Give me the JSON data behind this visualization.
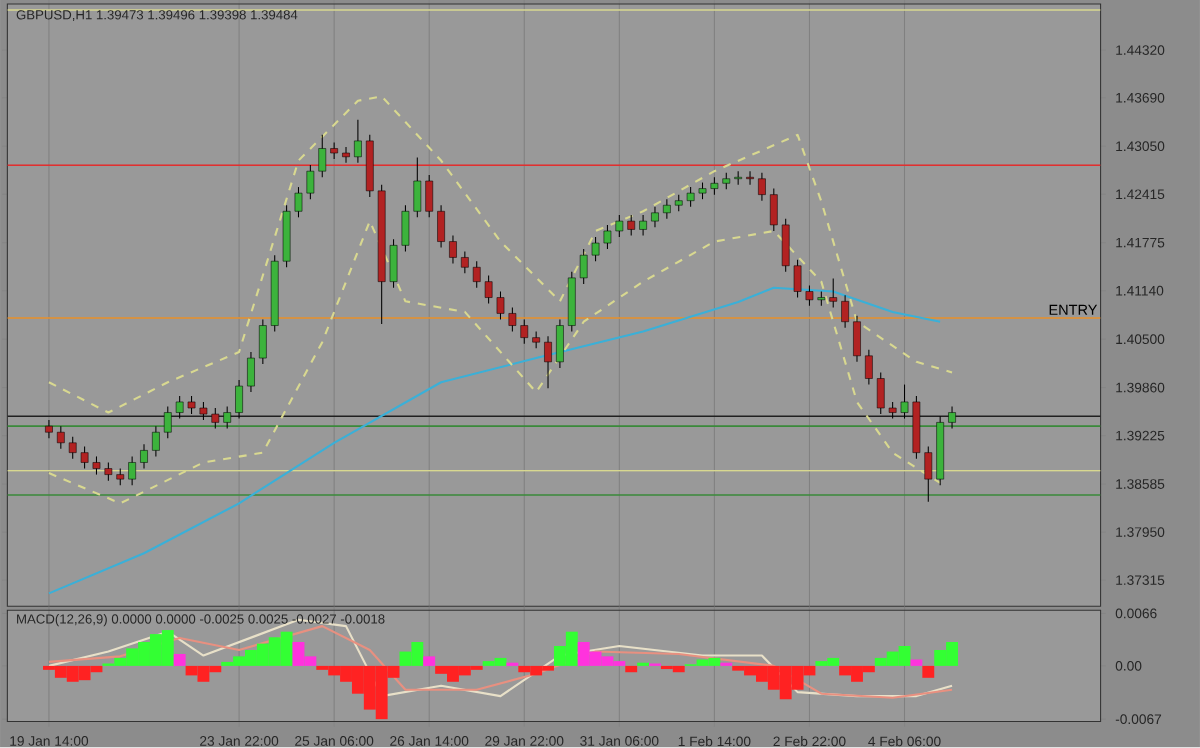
{
  "chart_data": [
    {
      "type": "candlestick",
      "title": "GBPUSD,H1 1.39473 1.39496 1.39398 1.39484",
      "categories": [
        null,
        null,
        null,
        null,
        null,
        null,
        null,
        null,
        null,
        null,
        null,
        null,
        null,
        null,
        null,
        null,
        null,
        null,
        null,
        null,
        null,
        null,
        null,
        null,
        null,
        null,
        null,
        null,
        null,
        null,
        null,
        null,
        null,
        null,
        null,
        null,
        null,
        null,
        null,
        null,
        null,
        null,
        null,
        null,
        null,
        null,
        null,
        null,
        null,
        null,
        null,
        null,
        null,
        null,
        null,
        null,
        null,
        null,
        null,
        null,
        null,
        null,
        null,
        null,
        null,
        null,
        null,
        null,
        null,
        null,
        null,
        null,
        null,
        null,
        null,
        null,
        null,
        null,
        null,
        null,
        null,
        null,
        null,
        null,
        null,
        null,
        null,
        null,
        null,
        null,
        null,
        null
      ],
      "ohlc": [
        null,
        null,
        null,
        [
          1.3935,
          1.3943,
          1.3919,
          1.3927
        ],
        [
          1.3927,
          1.3935,
          1.3905,
          1.3913
        ],
        [
          1.3913,
          1.3921,
          1.3892,
          1.39
        ],
        [
          1.39,
          1.3908,
          1.3879,
          1.3887
        ],
        [
          1.3887,
          1.3895,
          1.3871,
          1.3879
        ],
        [
          1.3879,
          1.3887,
          1.3863,
          1.3871
        ],
        [
          1.3871,
          1.3879,
          1.3857,
          1.3865
        ],
        [
          1.3865,
          1.3895,
          1.3857,
          1.3887
        ],
        [
          1.3887,
          1.3911,
          1.3879,
          1.3903
        ],
        [
          1.3903,
          1.3935,
          1.3895,
          1.3927
        ],
        [
          1.3927,
          1.3961,
          1.3919,
          1.3953
        ],
        [
          1.3953,
          1.3975,
          1.3945,
          1.3967
        ],
        [
          1.3967,
          1.3975,
          1.3951,
          1.3959
        ],
        [
          1.3959,
          1.3967,
          1.3943,
          1.3951
        ],
        [
          1.3951,
          1.3959,
          1.3932,
          1.394
        ],
        [
          1.394,
          1.3961,
          1.3932,
          1.3953
        ],
        [
          1.3953,
          1.3996,
          1.3945,
          1.3988
        ],
        [
          1.3988,
          1.4033,
          1.398,
          1.4025
        ],
        [
          1.4025,
          1.4076,
          1.4017,
          1.4068
        ],
        [
          1.4068,
          1.4161,
          1.406,
          1.4153
        ],
        [
          1.4153,
          1.4227,
          1.4145,
          1.4219
        ],
        [
          1.4219,
          1.4251,
          1.4211,
          1.4243
        ],
        [
          1.4243,
          1.428,
          1.4235,
          1.4272
        ],
        [
          1.4272,
          1.432,
          1.4264,
          1.4302
        ],
        [
          1.4302,
          1.431,
          1.4288,
          1.4296
        ],
        [
          1.4296,
          1.4304,
          1.4283,
          1.4291
        ],
        [
          1.4291,
          1.434,
          1.4283,
          1.4312
        ],
        [
          1.4312,
          1.432,
          1.4238,
          1.4246
        ],
        [
          1.4246,
          1.4254,
          1.407,
          1.4126
        ],
        [
          1.4126,
          1.4182,
          1.4118,
          1.4174
        ],
        [
          1.4174,
          1.4227,
          1.4166,
          1.4219
        ],
        [
          1.4219,
          1.429,
          1.4211,
          1.4259
        ],
        [
          1.4259,
          1.4267,
          1.4211,
          1.4219
        ],
        [
          1.4219,
          1.4227,
          1.4171,
          1.4179
        ],
        [
          1.4179,
          1.4187,
          1.415,
          1.4158
        ],
        [
          1.4158,
          1.4166,
          1.4137,
          1.4145
        ],
        [
          1.4145,
          1.4153,
          1.4118,
          1.4126
        ],
        [
          1.4126,
          1.4134,
          1.4097,
          1.4105
        ],
        [
          1.4105,
          1.4113,
          1.4076,
          1.4084
        ],
        [
          1.4084,
          1.4092,
          1.406,
          1.4068
        ],
        [
          1.4068,
          1.4076,
          1.4044,
          1.4052
        ],
        [
          1.4052,
          1.406,
          1.4038,
          1.4046
        ],
        [
          1.4046,
          1.4054,
          1.3985,
          1.402
        ],
        [
          1.402,
          1.4076,
          1.4012,
          1.4068
        ],
        [
          1.4068,
          1.4139,
          1.406,
          1.4131
        ],
        [
          1.4131,
          1.4169,
          1.4123,
          1.4161
        ],
        [
          1.4161,
          1.4185,
          1.4153,
          1.4177
        ],
        [
          1.4177,
          1.4201,
          1.4169,
          1.4193
        ],
        [
          1.4193,
          1.4214,
          1.4185,
          1.4206
        ],
        [
          1.4206,
          1.4214,
          1.4187,
          1.4195
        ],
        [
          1.4195,
          1.4214,
          1.4187,
          1.4206
        ],
        [
          1.4206,
          1.4225,
          1.4198,
          1.4217
        ],
        [
          1.4217,
          1.4235,
          1.4209,
          1.4227
        ],
        [
          1.4227,
          1.4241,
          1.4219,
          1.4233
        ],
        [
          1.4233,
          1.4251,
          1.4225,
          1.4243
        ],
        [
          1.4243,
          1.4257,
          1.4235,
          1.4249
        ],
        [
          1.4249,
          1.4264,
          1.4241,
          1.4256
        ],
        [
          1.4256,
          1.427,
          1.4248,
          1.4262
        ],
        [
          1.4262,
          1.4272,
          1.4254,
          1.4264
        ],
        [
          1.4264,
          1.4272,
          1.4254,
          1.4262
        ],
        [
          1.4262,
          1.427,
          1.4233,
          1.4241
        ],
        [
          1.4241,
          1.4249,
          1.4193,
          1.4201
        ],
        [
          1.4201,
          1.4209,
          1.4139,
          1.4147
        ],
        [
          1.4147,
          1.4155,
          1.4105,
          1.4113
        ],
        [
          1.4113,
          1.4121,
          1.4094,
          1.4102
        ],
        [
          1.4102,
          1.4113,
          1.4094,
          1.4105
        ],
        [
          1.4105,
          1.413,
          1.4092,
          1.41
        ],
        [
          1.41,
          1.4108,
          1.4065,
          1.4073
        ],
        [
          1.4073,
          1.4081,
          1.402,
          1.4028
        ],
        [
          1.4028,
          1.4036,
          1.399,
          1.3998
        ],
        [
          1.3998,
          1.4006,
          1.3951,
          1.3959
        ],
        [
          1.3959,
          1.3967,
          1.3945,
          1.3953
        ],
        [
          1.3953,
          1.399,
          1.3945,
          1.3967
        ],
        [
          1.3967,
          1.3975,
          1.3892,
          1.39
        ],
        [
          1.39,
          1.3908,
          1.3835,
          1.3865
        ],
        [
          1.3865,
          1.3948,
          1.3857,
          1.394
        ],
        [
          1.394,
          1.3961,
          1.3932,
          1.3953
        ],
        null,
        null,
        null,
        null,
        null,
        null,
        null,
        null,
        null,
        null,
        null,
        null
      ],
      "colors": [
        null,
        null,
        null,
        "#b22222",
        "#b22222",
        "#b22222",
        "#b22222",
        "#b22222",
        "#b22222",
        "#b22222",
        "#3cb33c",
        "#3cb33c",
        "#3cb33c",
        "#3cb33c",
        "#3cb33c",
        "#b22222",
        "#b22222",
        "#b22222",
        "#3cb33c",
        "#3cb33c",
        "#3cb33c",
        "#3cb33c",
        "#3cb33c",
        "#3cb33c",
        "#3cb33c",
        "#3cb33c",
        "#3cb33c",
        "#b22222",
        "#b22222",
        "#3cb33c",
        "#b22222",
        "#b22222",
        "#3cb33c",
        "#3cb33c",
        "#3cb33c",
        "#b22222",
        "#b22222",
        "#b22222",
        "#b22222",
        "#b22222",
        "#b22222",
        "#b22222",
        "#b22222",
        "#b22222",
        "#b22222",
        "#b22222",
        "#3cb33c",
        "#3cb33c",
        "#3cb33c",
        "#3cb33c",
        "#3cb33c",
        "#3cb33c",
        "#b22222",
        "#3cb33c",
        "#3cb33c",
        "#3cb33c",
        "#3cb33c",
        "#3cb33c",
        "#3cb33c",
        "#3cb33c",
        "#3cb33c",
        "#3cb33c",
        "#b22222",
        "#b22222",
        "#b22222",
        "#b22222",
        "#b22222",
        "#b22222",
        "#3cb33c",
        "#b22222",
        "#b22222",
        "#b22222",
        "#b22222",
        "#b22222",
        "#b22222",
        "#3cb33c",
        "#b22222",
        "#b22222",
        "#3cb33c",
        "#3cb33c",
        null,
        null,
        null,
        null,
        null,
        null,
        null,
        null,
        null,
        null,
        null,
        null
      ],
      "series": [
        {
          "type": "line",
          "color": "#3ab0d8",
          "line_style": "solid",
          "values": [
            null,
            null,
            null,
            1.3714,
            null,
            null,
            null,
            null,
            null,
            null,
            null,
            1.3767,
            null,
            null,
            null,
            null,
            null,
            null,
            null,
            1.3833,
            null,
            null,
            null,
            null,
            null,
            null,
            null,
            1.3913,
            null,
            null,
            null,
            null,
            null,
            null,
            null,
            null,
            1.3993,
            null,
            null,
            null,
            null,
            null,
            null,
            null,
            1.4025,
            null,
            null,
            null,
            null,
            null,
            null,
            null,
            null,
            1.406,
            null,
            null,
            null,
            null,
            null,
            null,
            null,
            1.4099,
            null,
            null,
            1.4118,
            null,
            null,
            null,
            null,
            1.4113,
            null,
            null,
            null,
            null,
            1.4086,
            null,
            null,
            null,
            1.4073,
            null,
            null,
            null,
            null,
            null,
            null,
            null,
            null,
            null,
            null,
            null,
            null,
            null
          ]
        },
        {
          "type": "line",
          "color": "#d8d890",
          "line_style": "dashed",
          "values": [
            null,
            null,
            null,
            1.3993,
            null,
            null,
            null,
            null,
            1.3953,
            null,
            null,
            null,
            null,
            1.3993,
            null,
            null,
            null,
            null,
            null,
            1.4033,
            null,
            null,
            null,
            null,
            1.4286,
            null,
            null,
            null,
            null,
            1.4365,
            null,
            1.4371,
            null,
            null,
            null,
            null,
            1.4286,
            null,
            null,
            null,
            null,
            1.4179,
            null,
            null,
            null,
            null,
            1.41,
            null,
            null,
            1.4193,
            null,
            null,
            null,
            1.4219,
            null,
            null,
            null,
            null,
            null,
            1.4272,
            null,
            null,
            null,
            null,
            null,
            null,
            1.432,
            null,
            1.4232,
            null,
            null,
            1.4073,
            null,
            null,
            null,
            null,
            1.402,
            null,
            null,
            1.4006,
            null,
            null,
            null,
            null,
            null,
            null,
            null,
            null,
            null,
            null,
            null,
            null
          ]
        },
        {
          "type": "line",
          "color": "#d8d890",
          "line_style": "dashed",
          "values": [
            null,
            null,
            null,
            1.3873,
            null,
            null,
            null,
            null,
            null,
            1.3833,
            null,
            null,
            null,
            null,
            null,
            null,
            1.3887,
            null,
            null,
            null,
            null,
            1.39,
            null,
            null,
            null,
            null,
            1.4046,
            null,
            null,
            null,
            1.4206,
            null,
            null,
            1.41,
            null,
            null,
            null,
            null,
            1.4086,
            null,
            null,
            null,
            null,
            null,
            1.398,
            null,
            null,
            null,
            1.4073,
            null,
            null,
            null,
            null,
            1.4126,
            null,
            null,
            null,
            null,
            null,
            1.4179,
            null,
            null,
            null,
            null,
            1.4193,
            null,
            null,
            null,
            1.4126,
            null,
            null,
            1.3967,
            null,
            null,
            1.39,
            null,
            null,
            null,
            1.386,
            null,
            null,
            null,
            null,
            null,
            null,
            null,
            null,
            null,
            null,
            null,
            null,
            null
          ]
        }
      ],
      "ref_lines": [
        {
          "axis": "y",
          "value": 1.4485,
          "color": "#d8d890"
        },
        {
          "axis": "y",
          "value": 1.428,
          "color": "#e03030"
        },
        {
          "axis": "y",
          "value": 1.4078,
          "color": "#e8902a",
          "label": "ENTRY"
        },
        {
          "axis": "y",
          "value": 1.3948,
          "color": "#202020"
        },
        {
          "axis": "y",
          "value": 1.3935,
          "color": "#3a8a3a"
        },
        {
          "axis": "y",
          "value": 1.3876,
          "color": "#d8d890"
        },
        {
          "axis": "y",
          "value": 1.3844,
          "color": "#3a8a3a"
        }
      ],
      "ylim": [
        1.3697,
        1.4493
      ],
      "yticks": [
        {
          "value": 1.4432,
          "label": "1.44320"
        },
        {
          "value": 1.4369,
          "label": "1.43690"
        },
        {
          "value": 1.4305,
          "label": "1.43050"
        },
        {
          "value": 1.42415,
          "label": "1.42415"
        },
        {
          "value": 1.41775,
          "label": "1.41775"
        },
        {
          "value": 1.4114,
          "label": "1.41140"
        },
        {
          "value": 1.405,
          "label": "1.40500"
        },
        {
          "value": 1.3986,
          "label": "1.39860"
        },
        {
          "value": 1.39225,
          "label": "1.39225"
        },
        {
          "value": 1.38585,
          "label": "1.38585"
        },
        {
          "value": 1.3795,
          "label": "1.37950"
        },
        {
          "value": 1.37315,
          "label": "1.37315"
        }
      ],
      "grid": "x",
      "tick_labels": "y"
    },
    {
      "type": "bar",
      "title": "MACD(12,26,9) 0.0000 0.0000 -0.0025 0.0025 -0.0027 -0.0018",
      "categories": [
        null,
        null,
        null,
        "19 Jan 14:00",
        null,
        null,
        null,
        null,
        null,
        null,
        null,
        null,
        null,
        null,
        null,
        null,
        null,
        null,
        null,
        "23 Jan 22:00",
        null,
        null,
        null,
        null,
        null,
        null,
        null,
        "25 Jan 06:00",
        null,
        null,
        null,
        null,
        null,
        null,
        null,
        "26 Jan 14:00",
        null,
        null,
        null,
        null,
        null,
        null,
        null,
        "29 Jan 22:00",
        null,
        null,
        null,
        null,
        null,
        null,
        null,
        "31 Jan 06:00",
        null,
        null,
        null,
        null,
        null,
        null,
        null,
        "1 Feb 14:00",
        null,
        null,
        null,
        null,
        null,
        null,
        null,
        "2 Feb 22:00",
        null,
        null,
        null,
        null,
        null,
        null,
        null,
        "4 Feb 06:00",
        null,
        null,
        null,
        null,
        null,
        null,
        null,
        null,
        null,
        null,
        null,
        null,
        null,
        null,
        null,
        null
      ],
      "values": [
        null,
        null,
        null,
        -0.0005,
        -0.0015,
        -0.002,
        -0.0018,
        -0.0008,
        0.0003,
        0.001,
        0.0022,
        0.003,
        0.004,
        0.0045,
        0.0015,
        -0.0012,
        -0.002,
        -0.0008,
        0.0005,
        0.0012,
        0.002,
        0.0028,
        0.0036,
        0.0043,
        0.003,
        0.0012,
        -0.0005,
        -0.0012,
        -0.002,
        -0.0035,
        -0.0055,
        -0.0067,
        -0.0015,
        0.0018,
        0.003,
        0.0012,
        -0.001,
        -0.002,
        -0.0012,
        -0.0005,
        0.0006,
        0.001,
        0.0004,
        -0.0008,
        -0.0012,
        -0.0006,
        0.0025,
        0.0043,
        0.003,
        0.0018,
        0.0012,
        0.0006,
        -0.0008,
        0.0004,
        0.0003,
        -0.0004,
        -0.0008,
        0.0002,
        0.0008,
        0.001,
        0.0004,
        -0.0006,
        -0.0012,
        -0.002,
        -0.003,
        -0.0042,
        -0.003,
        -0.0012,
        0.0006,
        0.001,
        -0.0012,
        -0.002,
        -0.0008,
        0.001,
        0.0018,
        0.0025,
        0.0008,
        -0.0015,
        0.002,
        0.003,
        null,
        null,
        null,
        null,
        null,
        null,
        null,
        null,
        null,
        null,
        null,
        null
      ],
      "colors": [
        null,
        null,
        null,
        "#ff2222",
        "#ff2222",
        "#ff2222",
        "#ff2222",
        "#ff2222",
        "#33ff33",
        "#33ff33",
        "#33ff33",
        "#33ff33",
        "#33ff33",
        "#33ff33",
        "#ff33dd",
        "#ff2222",
        "#ff2222",
        "#ff2222",
        "#33ff33",
        "#33ff33",
        "#33ff33",
        "#33ff33",
        "#33ff33",
        "#33ff33",
        "#ff33dd",
        "#ff33dd",
        "#ff2222",
        "#ff2222",
        "#ff2222",
        "#ff2222",
        "#ff2222",
        "#ff2222",
        "#ff2222",
        "#33ff33",
        "#33ff33",
        "#ff33dd",
        "#ff2222",
        "#ff2222",
        "#ff2222",
        "#ff2222",
        "#33ff33",
        "#33ff33",
        "#ff33dd",
        "#ff2222",
        "#ff2222",
        "#ff2222",
        "#33ff33",
        "#33ff33",
        "#ff33dd",
        "#ff33dd",
        "#ff33dd",
        "#ff33dd",
        "#ff2222",
        "#33ff33",
        "#ff33dd",
        "#ff2222",
        "#ff2222",
        "#33ff33",
        "#33ff33",
        "#33ff33",
        "#ff33dd",
        "#ff2222",
        "#ff2222",
        "#ff2222",
        "#ff2222",
        "#ff2222",
        "#ff2222",
        "#ff2222",
        "#33ff33",
        "#33ff33",
        "#ff2222",
        "#ff2222",
        "#ff2222",
        "#33ff33",
        "#33ff33",
        "#33ff33",
        "#ff33dd",
        "#ff2222",
        "#33ff33",
        "#33ff33",
        null,
        null,
        null,
        null,
        null,
        null,
        null,
        null,
        null,
        null,
        null,
        null
      ],
      "series": [
        {
          "type": "line",
          "color": "#e8e0c8",
          "line_style": "solid",
          "values": [
            null,
            null,
            null,
            0,
            null,
            null,
            null,
            null,
            0.0018,
            null,
            null,
            null,
            null,
            0.0043,
            null,
            null,
            0.0013,
            null,
            null,
            null,
            null,
            null,
            null,
            null,
            0.0058,
            null,
            null,
            null,
            0.005,
            null,
            null,
            -0.0038,
            null,
            null,
            null,
            null,
            -0.0025,
            null,
            null,
            null,
            null,
            -0.0038,
            null,
            null,
            null,
            null,
            0.0013,
            null,
            null,
            null,
            null,
            0.0025,
            null,
            null,
            null,
            null,
            null,
            null,
            0.0013,
            null,
            null,
            null,
            null,
            0.0013,
            null,
            null,
            -0.0033,
            null,
            null,
            null,
            null,
            -0.0038,
            null,
            null,
            null,
            null,
            -0.0038,
            null,
            null,
            -0.0025,
            null,
            null,
            null,
            null,
            null,
            null,
            null,
            null,
            null,
            null,
            null,
            null
          ]
        },
        {
          "type": "line",
          "color": "#e89080",
          "line_style": "solid",
          "values": [
            null,
            null,
            null,
            0.0005,
            null,
            null,
            null,
            null,
            null,
            0.0012,
            null,
            null,
            null,
            null,
            0.0035,
            null,
            null,
            null,
            null,
            0.002,
            null,
            null,
            null,
            null,
            null,
            null,
            0.005,
            null,
            null,
            null,
            0.002,
            null,
            null,
            -0.003,
            null,
            null,
            null,
            null,
            null,
            -0.003,
            null,
            null,
            null,
            null,
            -0.001,
            null,
            null,
            null,
            null,
            0.0018,
            null,
            null,
            null,
            null,
            null,
            null,
            0.0015,
            null,
            null,
            null,
            null,
            null,
            null,
            null,
            0,
            null,
            null,
            null,
            -0.0035,
            null,
            null,
            null,
            null,
            null,
            -0.004,
            null,
            null,
            null,
            null,
            -0.003,
            null,
            null,
            null,
            null,
            null,
            null,
            null,
            null,
            null,
            null,
            null,
            null
          ]
        }
      ],
      "ylim": [
        -0.007,
        0.007
      ],
      "yticks": [
        {
          "value": 0.0066,
          "label": "0.0066"
        },
        {
          "value": 0,
          "label": "0.00"
        },
        {
          "value": -0.0067,
          "label": "-0.0067"
        }
      ],
      "grid": "x"
    }
  ]
}
